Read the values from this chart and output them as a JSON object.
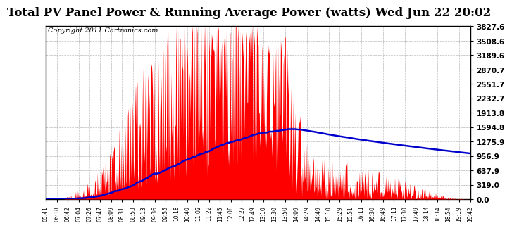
{
  "title": "Total PV Panel Power & Running Average Power (watts) Wed Jun 22 20:02",
  "copyright": "Copyright 2011 Cartronics.com",
  "yticks": [
    0.0,
    319.0,
    637.9,
    956.9,
    1275.9,
    1594.8,
    1913.8,
    2232.7,
    2551.7,
    2870.7,
    3189.6,
    3508.6,
    3827.6
  ],
  "ymax": 3827.6,
  "ymin": 0.0,
  "bar_color": "#FF0000",
  "line_color": "#0000CC",
  "background_color": "#FFFFFF",
  "grid_color": "#AAAAAA",
  "title_fontsize": 12,
  "copyright_fontsize": 7,
  "xtick_labels": [
    "05:41",
    "06:18",
    "06:42",
    "07:04",
    "07:26",
    "07:47",
    "08:09",
    "08:31",
    "08:53",
    "09:13",
    "09:36",
    "09:55",
    "10:18",
    "10:40",
    "11:02",
    "11:22",
    "11:45",
    "12:08",
    "12:27",
    "12:49",
    "13:10",
    "13:30",
    "13:50",
    "14:09",
    "14:29",
    "14:49",
    "15:10",
    "15:29",
    "15:51",
    "16:11",
    "16:30",
    "16:49",
    "17:11",
    "17:30",
    "17:49",
    "18:14",
    "18:34",
    "18:54",
    "19:19",
    "19:42"
  ],
  "n_points": 800
}
